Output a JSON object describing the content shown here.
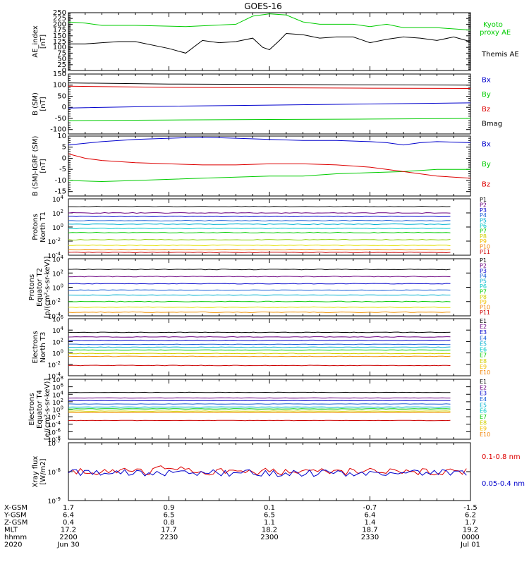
{
  "title": "GOES-16",
  "chart_data": [
    {
      "type": "line",
      "ylabel": [
        "AE_index",
        "[nT]"
      ],
      "ylim": [
        0,
        250
      ],
      "scale": "linear",
      "ticks": [
        "0",
        "25",
        "50",
        "75",
        "100",
        "125",
        "150",
        "175",
        "200",
        "225",
        "250"
      ],
      "tickvals": [
        0,
        25,
        50,
        75,
        100,
        125,
        150,
        175,
        200,
        225,
        250
      ],
      "xlim": [
        0,
        120
      ],
      "series": [
        {
          "name": "Kyoto proxy AE",
          "legend": [
            "Kyoto",
            "proxy AE"
          ],
          "color": "#00cc00",
          "x": [
            0,
            5,
            10,
            20,
            35,
            50,
            55,
            60,
            65,
            70,
            75,
            85,
            90,
            95,
            100,
            110,
            120
          ],
          "y": [
            210,
            205,
            195,
            195,
            190,
            200,
            235,
            245,
            240,
            210,
            200,
            200,
            190,
            200,
            185,
            185,
            175
          ]
        },
        {
          "name": "Themis AE",
          "legend": [
            "Themis AE"
          ],
          "color": "#000000",
          "x": [
            0,
            5,
            10,
            15,
            20,
            30,
            35,
            40,
            45,
            50,
            55,
            58,
            60,
            63,
            65,
            70,
            75,
            80,
            85,
            90,
            95,
            100,
            105,
            110,
            115,
            120
          ],
          "y": [
            115,
            115,
            120,
            125,
            125,
            95,
            75,
            130,
            120,
            125,
            140,
            100,
            90,
            130,
            160,
            155,
            140,
            145,
            145,
            120,
            135,
            145,
            140,
            130,
            145,
            125
          ]
        }
      ]
    },
    {
      "type": "line",
      "ylabel": [
        "B (SM)",
        "[nT]"
      ],
      "ylim": [
        -120,
        150
      ],
      "scale": "linear",
      "ticks": [
        "-100",
        "-50",
        "0",
        "50",
        "100",
        "150"
      ],
      "tickvals": [
        -100,
        -50,
        0,
        50,
        100,
        150
      ],
      "xlim": [
        0,
        120
      ],
      "series": [
        {
          "name": "Bx",
          "color": "#0000cc",
          "x": [
            0,
            30,
            60,
            90,
            120
          ],
          "y": [
            -3,
            5,
            10,
            15,
            20
          ]
        },
        {
          "name": "By",
          "color": "#00cc00",
          "x": [
            0,
            30,
            60,
            90,
            120
          ],
          "y": [
            -60,
            -57,
            -55,
            -53,
            -50
          ]
        },
        {
          "name": "Bz",
          "color": "#dd0000",
          "x": [
            0,
            30,
            60,
            90,
            120
          ],
          "y": [
            95,
            90,
            88,
            86,
            85
          ]
        },
        {
          "name": "Bmag",
          "color": "#000000",
          "x": [
            0,
            30,
            60,
            90,
            120
          ],
          "y": [
            110,
            105,
            103,
            101,
            100
          ]
        }
      ]
    },
    {
      "type": "line",
      "ylabel": [
        "B (SM)-IGRF (SM)",
        "[nT]"
      ],
      "ylim": [
        -17,
        10
      ],
      "scale": "linear",
      "ticks": [
        "-15",
        "-10",
        "-5",
        "0",
        "5",
        "10"
      ],
      "tickvals": [
        -15,
        -10,
        -5,
        0,
        5,
        10
      ],
      "xlim": [
        0,
        120
      ],
      "series": [
        {
          "name": "Bx",
          "color": "#0000cc",
          "x": [
            0,
            10,
            20,
            30,
            40,
            50,
            60,
            70,
            80,
            90,
            95,
            100,
            105,
            110,
            120
          ],
          "y": [
            6,
            7.5,
            8.5,
            9,
            9.5,
            9,
            8.5,
            8,
            8,
            7.5,
            7,
            6,
            7,
            7.5,
            7
          ]
        },
        {
          "name": "By",
          "color": "#00cc00",
          "x": [
            0,
            10,
            20,
            30,
            40,
            50,
            60,
            70,
            80,
            90,
            100,
            110,
            120
          ],
          "y": [
            -10,
            -10.5,
            -10,
            -9.5,
            -9,
            -8.5,
            -8,
            -8,
            -7,
            -6.5,
            -6,
            -5,
            -5
          ]
        },
        {
          "name": "Bz",
          "color": "#dd0000",
          "x": [
            0,
            5,
            10,
            20,
            30,
            40,
            50,
            60,
            70,
            80,
            90,
            100,
            110,
            120
          ],
          "y": [
            2,
            0,
            -1,
            -2,
            -2.5,
            -3,
            -3,
            -2.5,
            -2.5,
            -3,
            -4,
            -6,
            -8,
            -9
          ]
        }
      ]
    },
    {
      "type": "line",
      "ylabel": [
        "Protons",
        "North T1"
      ],
      "ylim": [
        -4,
        4
      ],
      "scale": "log",
      "ticks": [
        "10^-4",
        "10^-2",
        "10^0",
        "10^2",
        "10^4"
      ],
      "tickvals": [
        -4,
        -2,
        0,
        2,
        4
      ],
      "xlim": [
        0,
        120
      ],
      "series": [
        {
          "name": "P1",
          "color": "#000000",
          "level": 2.9
        },
        {
          "name": "P2",
          "color": "#6a0080",
          "level": 2.0
        },
        {
          "name": "P3",
          "color": "#0000cc",
          "level": 1.5
        },
        {
          "name": "P4",
          "color": "#1a5fd8",
          "level": 0.9
        },
        {
          "name": "P5",
          "color": "#00b0d0",
          "level": 0.4
        },
        {
          "name": "P6",
          "color": "#00c8c8",
          "level": -0.2
        },
        {
          "name": "P7",
          "color": "#00cc00",
          "level": -0.8
        },
        {
          "name": "P8",
          "color": "#88d000",
          "level": -1.8
        },
        {
          "name": "P9",
          "color": "#e0e000",
          "level": -2.6
        },
        {
          "name": "P10",
          "color": "#f09000",
          "level": -3.2
        },
        {
          "name": "P11",
          "color": "#cc0000",
          "level": -3.6
        }
      ],
      "legend_colors": [
        "#000000",
        "#6a0080",
        "#0000cc",
        "#1a5fd8",
        "#00b0d0",
        "#00c8c8",
        "#00cc00",
        "#d0d000",
        "#f0c000",
        "#f08000",
        "#cc0000"
      ]
    },
    {
      "type": "line",
      "ylabel": [
        "Protons",
        "Equator T2",
        "[p/(cm²-s-sr-keV)]"
      ],
      "ylim": [
        -4,
        4
      ],
      "scale": "log",
      "ticks": [
        "10^-4",
        "10^-2",
        "10^0",
        "10^2",
        "10^4"
      ],
      "tickvals": [
        -4,
        -2,
        0,
        2,
        4
      ],
      "xlim": [
        0,
        120
      ],
      "series": [
        {
          "name": "P1",
          "color": "#000000",
          "level": 2.5
        },
        {
          "name": "P2",
          "color": "#6a0080",
          "level": 1.5
        },
        {
          "name": "P3",
          "color": "#0000cc",
          "level": 0.5
        },
        {
          "name": "P4",
          "color": "#1a5fd8",
          "level": -0.4
        },
        {
          "name": "P5",
          "color": "#00b0d0",
          "level": -1.1
        },
        {
          "name": "P6",
          "color": "#00cc00",
          "level": -2.0
        },
        {
          "name": "P7",
          "color": "#e0e000",
          "level": -2.8
        },
        {
          "name": "P8",
          "color": "#f09000",
          "level": -3.5
        }
      ],
      "legend_colors": [
        "#000000",
        "#6a0080",
        "#0000cc",
        "#1a5fd8",
        "#00b0d0",
        "#00c8c8",
        "#00cc00",
        "#d0d000",
        "#f0c000",
        "#f08000",
        "#cc0000"
      ]
    },
    {
      "type": "line",
      "ylabel": [
        "Electrons",
        "North T3"
      ],
      "ylim": [
        -4,
        6
      ],
      "scale": "log",
      "ticks": [
        "10^-4",
        "10^-2",
        "10^0",
        "10^2",
        "10^4",
        "10^6"
      ],
      "tickvals": [
        -4,
        -2,
        0,
        2,
        4,
        6
      ],
      "xlim": [
        0,
        120
      ],
      "series": [
        {
          "name": "E1",
          "color": "#000000",
          "level": 3.6
        },
        {
          "name": "E2",
          "color": "#6a0080",
          "level": 2.8
        },
        {
          "name": "E3",
          "color": "#0000cc",
          "level": 2.2
        },
        {
          "name": "E4",
          "color": "#1a5fd8",
          "level": 1.5
        },
        {
          "name": "E5",
          "color": "#00b0d0",
          "level": 1.0
        },
        {
          "name": "E6",
          "color": "#00cc00",
          "level": 0.5
        },
        {
          "name": "E7",
          "color": "#d0d000",
          "level": -0.1
        },
        {
          "name": "E8",
          "color": "#f09000",
          "level": -0.6
        },
        {
          "name": "E9",
          "color": "#cc0000",
          "level": -2.2
        }
      ],
      "legend_colors": [
        "#000000",
        "#6a0080",
        "#0000cc",
        "#1a5fd8",
        "#00b0d0",
        "#00c8c8",
        "#00cc00",
        "#d0d000",
        "#f0c000",
        "#f08000",
        "#cc0000"
      ]
    },
    {
      "type": "line",
      "ylabel": [
        "Electrons",
        "Equator T4",
        "[e/(cm²-s-sr-keV)]"
      ],
      "ylim": [
        -8,
        8
      ],
      "scale": "log",
      "ticks": [
        "10^-8",
        "10^-6",
        "10^-4",
        "10^-2",
        "10^0",
        "10^2",
        "10^4",
        "10^6",
        "10^8"
      ],
      "tickvals": [
        -8,
        -6,
        -4,
        -2,
        0,
        2,
        4,
        6,
        8
      ],
      "xlim": [
        0,
        120
      ],
      "series": [
        {
          "name": "E1",
          "color": "#000000",
          "level": 4.5
        },
        {
          "name": "E2",
          "color": "#6a0080",
          "level": 3.0
        },
        {
          "name": "E3",
          "color": "#0000cc",
          "level": 2.3
        },
        {
          "name": "E4",
          "color": "#1a5fd8",
          "level": 1.4
        },
        {
          "name": "E5",
          "color": "#00b0d0",
          "level": 0.6
        },
        {
          "name": "E6",
          "color": "#00cc00",
          "level": 0.1
        },
        {
          "name": "E7",
          "color": "#d0d000",
          "level": -0.5
        },
        {
          "name": "E8",
          "color": "#f09000",
          "level": -0.9
        },
        {
          "name": "E9",
          "color": "#cc0000",
          "level": -3.0
        }
      ],
      "legend_colors": [
        "#000000",
        "#6a0080",
        "#0000cc",
        "#1a5fd8",
        "#00b0d0",
        "#00c8c8",
        "#00cc00",
        "#d0d000",
        "#f0c000",
        "#f08000",
        "#cc0000"
      ]
    },
    {
      "type": "line",
      "ylabel": [
        "Xray flux",
        "[W/m2]"
      ],
      "ylim": [
        -9,
        -7
      ],
      "scale": "log",
      "ticks": [
        "10^-9",
        "10^-8",
        "10^-7"
      ],
      "tickvals": [
        -9,
        -8,
        -7
      ],
      "xlim": [
        0,
        120
      ],
      "series": [
        {
          "name": "0.1-0.8 nm",
          "color": "#dd0000",
          "level": -8.0
        },
        {
          "name": "0.05-0.4 nm",
          "color": "#0000cc",
          "level": -8.05
        }
      ]
    }
  ],
  "legend_labels": {
    "p0": [
      {
        "text": "Kyoto",
        "color": "#00cc00"
      },
      {
        "text": "proxy AE",
        "color": "#00cc00"
      },
      {
        "text": "Themis AE",
        "color": "#000000"
      }
    ],
    "p1": [
      {
        "text": "Bx",
        "color": "#0000cc"
      },
      {
        "text": "By",
        "color": "#00cc00"
      },
      {
        "text": "Bz",
        "color": "#dd0000"
      },
      {
        "text": "Bmag",
        "color": "#000000"
      }
    ],
    "p2": [
      {
        "text": "Bx",
        "color": "#0000cc"
      },
      {
        "text": "By",
        "color": "#00cc00"
      },
      {
        "text": "Bz",
        "color": "#dd0000"
      }
    ],
    "p7": [
      {
        "text": "0.1-0.8 nm",
        "color": "#dd0000"
      },
      {
        "text": "0.05-0.4 nm",
        "color": "#0000cc"
      }
    ]
  },
  "proton_labels": [
    "P1",
    "P2",
    "P3",
    "P4",
    "P5",
    "P6",
    "P7",
    "P8",
    "P9",
    "P10",
    "P11"
  ],
  "electron_labels": [
    "E1",
    "E2",
    "E3",
    "E4",
    "E5",
    "E6",
    "E7",
    "E8",
    "E9",
    "E10"
  ],
  "xaxis": {
    "row_labels": [
      "X-GSM",
      "Y-GSM",
      "Z-GSM",
      "MLT",
      "hhmm",
      "2020"
    ],
    "columns": [
      {
        "x": 0,
        "values": [
          "1.7",
          "6.4",
          "0.4",
          "17.2",
          "2200",
          "Jun 30"
        ]
      },
      {
        "x": 30,
        "values": [
          "0.9",
          "6.5",
          "0.8",
          "17.7",
          "2230",
          ""
        ]
      },
      {
        "x": 60,
        "values": [
          "0.1",
          "6.5",
          "1.1",
          "18.2",
          "2300",
          ""
        ]
      },
      {
        "x": 90,
        "values": [
          "-0.7",
          "6.4",
          "1.4",
          "18.7",
          "2330",
          ""
        ]
      },
      {
        "x": 120,
        "values": [
          "-1.5",
          "6.2",
          "1.7",
          "19.2",
          "0000",
          "Jul 01"
        ]
      }
    ]
  }
}
